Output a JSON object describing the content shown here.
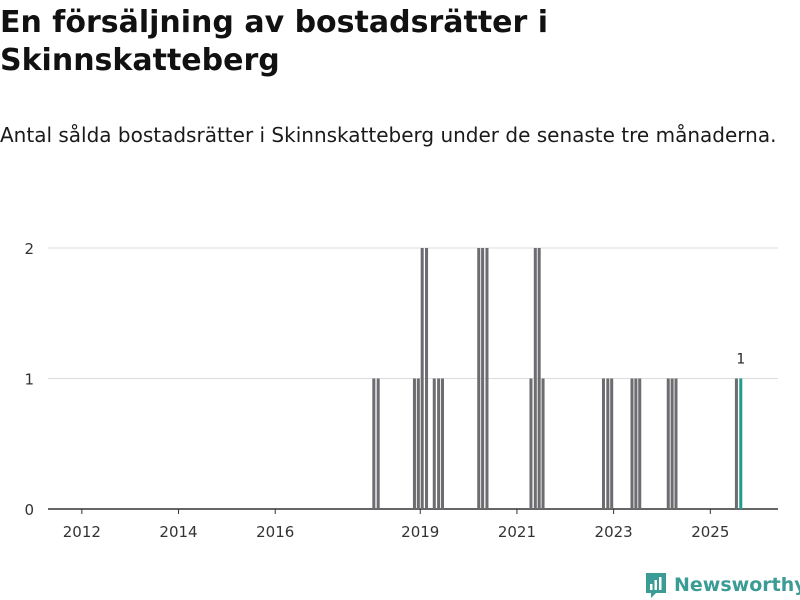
{
  "title": "En försäljning av bostadsrätter i Skinnskatteberg",
  "subtitle": "Antal sålda bostadsrätter i Skinnskatteberg under de senaste tre månaderna.",
  "brand": {
    "name": "Newsworthy",
    "color": "#3a9c94",
    "icon": "newsworthy-logo-icon"
  },
  "colors": {
    "bar": "#6d6d71",
    "highlight": "#1f9e8e",
    "grid": "#dcdcdc",
    "axis": "#333333"
  },
  "chart_data": {
    "type": "bar",
    "title": "En försäljning av bostadsrätter i Skinnskatteberg",
    "xlabel": "",
    "ylabel": "",
    "xlim": [
      2011.3,
      2026.4
    ],
    "ylim": [
      0,
      2
    ],
    "yticks": [
      0,
      1,
      2
    ],
    "xticks": [
      2012,
      2014,
      2016,
      2019,
      2021,
      2023,
      2025
    ],
    "bar_width_years": 0.0833,
    "series": [
      {
        "name": "Antal sålda bostadsrätter",
        "points": [
          {
            "x": 2018.04,
            "y": 1
          },
          {
            "x": 2018.13,
            "y": 1
          },
          {
            "x": 2018.88,
            "y": 1
          },
          {
            "x": 2018.96,
            "y": 1
          },
          {
            "x": 2019.04,
            "y": 2
          },
          {
            "x": 2019.13,
            "y": 2
          },
          {
            "x": 2019.29,
            "y": 1
          },
          {
            "x": 2019.38,
            "y": 1
          },
          {
            "x": 2019.46,
            "y": 1
          },
          {
            "x": 2020.21,
            "y": 2
          },
          {
            "x": 2020.29,
            "y": 2
          },
          {
            "x": 2020.38,
            "y": 2
          },
          {
            "x": 2021.29,
            "y": 1
          },
          {
            "x": 2021.38,
            "y": 2
          },
          {
            "x": 2021.46,
            "y": 2
          },
          {
            "x": 2021.54,
            "y": 1
          },
          {
            "x": 2022.79,
            "y": 1
          },
          {
            "x": 2022.88,
            "y": 1
          },
          {
            "x": 2022.96,
            "y": 1
          },
          {
            "x": 2023.38,
            "y": 1
          },
          {
            "x": 2023.46,
            "y": 1
          },
          {
            "x": 2023.54,
            "y": 1
          },
          {
            "x": 2024.13,
            "y": 1
          },
          {
            "x": 2024.21,
            "y": 1
          },
          {
            "x": 2024.29,
            "y": 1
          },
          {
            "x": 2025.54,
            "y": 1
          },
          {
            "x": 2025.63,
            "y": 1,
            "highlight": true,
            "label": "1"
          }
        ]
      }
    ]
  }
}
